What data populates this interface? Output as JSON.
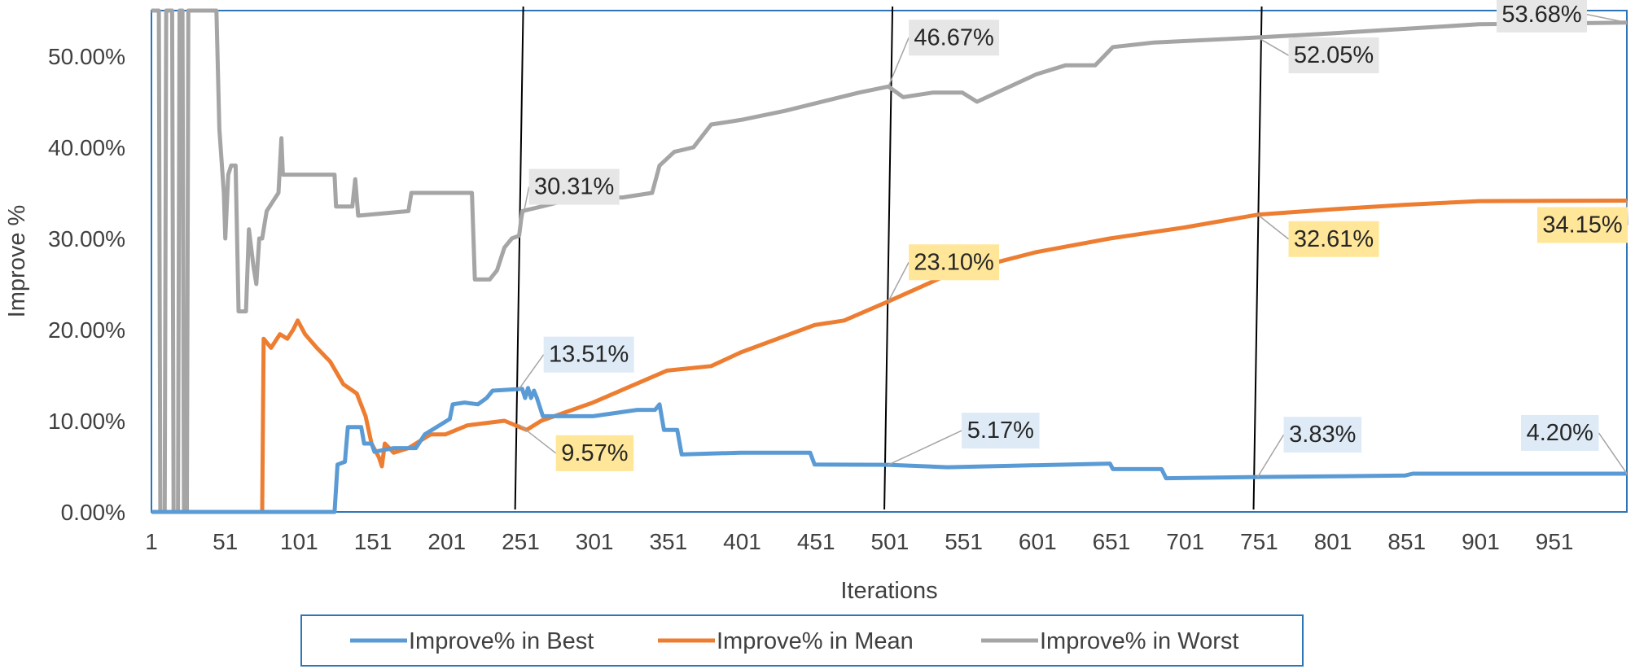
{
  "chart_data": {
    "type": "line",
    "title": "",
    "xlabel": "Iterations",
    "ylabel": "Improve %",
    "xlim": [
      1,
      1000
    ],
    "ylim": [
      0,
      0.55
    ],
    "x_ticks": [
      "1",
      "51",
      "101",
      "151",
      "201",
      "251",
      "301",
      "351",
      "401",
      "451",
      "501",
      "551",
      "601",
      "651",
      "701",
      "751",
      "801",
      "851",
      "901",
      "951"
    ],
    "y_ticks": [
      "0.00%",
      "10.00%",
      "20.00%",
      "30.00%",
      "40.00%",
      "50.00%"
    ],
    "vertical_markers": [
      250,
      500,
      750
    ],
    "legend": {
      "position": "bottom"
    },
    "series": [
      {
        "name": "Improve% in Best",
        "color": "#5B9BD5",
        "points": [
          [
            1,
            0
          ],
          [
            125,
            0
          ],
          [
            127,
            0.052
          ],
          [
            132,
            0.055
          ],
          [
            134,
            0.093
          ],
          [
            143,
            0.093
          ],
          [
            145,
            0.075
          ],
          [
            150,
            0.075
          ],
          [
            152,
            0.066
          ],
          [
            165,
            0.07
          ],
          [
            180,
            0.07
          ],
          [
            186,
            0.085
          ],
          [
            196,
            0.095
          ],
          [
            203,
            0.102
          ],
          [
            205,
            0.118
          ],
          [
            213,
            0.12
          ],
          [
            222,
            0.118
          ],
          [
            228,
            0.125
          ],
          [
            232,
            0.133
          ],
          [
            252,
            0.135
          ],
          [
            254,
            0.125
          ],
          [
            256,
            0.136
          ],
          [
            258,
            0.125
          ],
          [
            260,
            0.133
          ],
          [
            262,
            0.125
          ],
          [
            266,
            0.105
          ],
          [
            300,
            0.105
          ],
          [
            330,
            0.112
          ],
          [
            342,
            0.112
          ],
          [
            345,
            0.118
          ],
          [
            348,
            0.09
          ],
          [
            357,
            0.09
          ],
          [
            360,
            0.063
          ],
          [
            400,
            0.065
          ],
          [
            447,
            0.065
          ],
          [
            450,
            0.052
          ],
          [
            500,
            0.0517
          ],
          [
            540,
            0.049
          ],
          [
            650,
            0.053
          ],
          [
            652,
            0.047
          ],
          [
            685,
            0.047
          ],
          [
            688,
            0.037
          ],
          [
            750,
            0.0383
          ],
          [
            800,
            0.039
          ],
          [
            850,
            0.04
          ],
          [
            855,
            0.042
          ],
          [
            1000,
            0.042
          ]
        ]
      },
      {
        "name": "Improve% in Mean",
        "color": "#ED7D31",
        "points": [
          [
            1,
            0
          ],
          [
            76,
            0
          ],
          [
            77,
            0.19
          ],
          [
            82,
            0.18
          ],
          [
            88,
            0.195
          ],
          [
            93,
            0.19
          ],
          [
            97,
            0.2
          ],
          [
            100,
            0.21
          ],
          [
            105,
            0.195
          ],
          [
            113,
            0.18
          ],
          [
            122,
            0.165
          ],
          [
            131,
            0.14
          ],
          [
            140,
            0.13
          ],
          [
            146,
            0.105
          ],
          [
            150,
            0.075
          ],
          [
            155,
            0.06
          ],
          [
            157,
            0.05
          ],
          [
            159,
            0.075
          ],
          [
            165,
            0.065
          ],
          [
            175,
            0.07
          ],
          [
            190,
            0.085
          ],
          [
            200,
            0.085
          ],
          [
            215,
            0.095
          ],
          [
            240,
            0.1
          ],
          [
            255,
            0.09
          ],
          [
            265,
            0.1
          ],
          [
            300,
            0.12
          ],
          [
            350,
            0.155
          ],
          [
            380,
            0.16
          ],
          [
            400,
            0.175
          ],
          [
            450,
            0.205
          ],
          [
            470,
            0.21
          ],
          [
            500,
            0.231
          ],
          [
            540,
            0.26
          ],
          [
            600,
            0.285
          ],
          [
            650,
            0.3
          ],
          [
            700,
            0.312
          ],
          [
            750,
            0.3261
          ],
          [
            800,
            0.332
          ],
          [
            850,
            0.337
          ],
          [
            900,
            0.341
          ],
          [
            1000,
            0.3415
          ]
        ]
      },
      {
        "name": "Improve% in Worst",
        "color": "#A5A5A5",
        "points": [
          [
            1,
            0.55
          ],
          [
            6,
            0.55
          ],
          [
            7,
            0
          ],
          [
            10,
            0
          ],
          [
            11,
            0.55
          ],
          [
            15,
            0.55
          ],
          [
            16,
            0
          ],
          [
            19,
            0
          ],
          [
            20,
            0.55
          ],
          [
            22,
            0.55
          ],
          [
            23,
            0
          ],
          [
            25,
            0
          ],
          [
            26,
            0.55
          ],
          [
            45,
            0.55
          ],
          [
            47,
            0.42
          ],
          [
            50,
            0.35
          ],
          [
            51,
            0.3
          ],
          [
            53,
            0.37
          ],
          [
            55,
            0.38
          ],
          [
            58,
            0.38
          ],
          [
            60,
            0.22
          ],
          [
            65,
            0.22
          ],
          [
            67,
            0.31
          ],
          [
            70,
            0.27
          ],
          [
            72,
            0.25
          ],
          [
            74,
            0.3
          ],
          [
            76,
            0.3
          ],
          [
            79,
            0.33
          ],
          [
            83,
            0.34
          ],
          [
            87,
            0.35
          ],
          [
            89,
            0.41
          ],
          [
            90,
            0.37
          ],
          [
            125,
            0.37
          ],
          [
            126,
            0.335
          ],
          [
            137,
            0.335
          ],
          [
            139,
            0.365
          ],
          [
            141,
            0.325
          ],
          [
            175,
            0.33
          ],
          [
            177,
            0.35
          ],
          [
            218,
            0.35
          ],
          [
            220,
            0.255
          ],
          [
            230,
            0.255
          ],
          [
            235,
            0.265
          ],
          [
            240,
            0.29
          ],
          [
            245,
            0.3
          ],
          [
            250,
            0.3031
          ],
          [
            252,
            0.33
          ],
          [
            265,
            0.335
          ],
          [
            290,
            0.345
          ],
          [
            320,
            0.345
          ],
          [
            340,
            0.35
          ],
          [
            345,
            0.38
          ],
          [
            355,
            0.395
          ],
          [
            368,
            0.4
          ],
          [
            380,
            0.425
          ],
          [
            400,
            0.43
          ],
          [
            430,
            0.44
          ],
          [
            480,
            0.46
          ],
          [
            500,
            0.4667
          ],
          [
            510,
            0.455
          ],
          [
            530,
            0.46
          ],
          [
            550,
            0.46
          ],
          [
            560,
            0.45
          ],
          [
            600,
            0.48
          ],
          [
            620,
            0.49
          ],
          [
            640,
            0.49
          ],
          [
            652,
            0.51
          ],
          [
            680,
            0.515
          ],
          [
            750,
            0.5205
          ],
          [
            800,
            0.525
          ],
          [
            850,
            0.53
          ],
          [
            900,
            0.535
          ],
          [
            1000,
            0.5368
          ]
        ]
      }
    ],
    "data_labels": [
      {
        "series": "Improve% in Best",
        "x": 250,
        "y": 0.1351,
        "text": "13.51%"
      },
      {
        "series": "Improve% in Best",
        "x": 500,
        "y": 0.0517,
        "text": "5.17%"
      },
      {
        "series": "Improve% in Best",
        "x": 750,
        "y": 0.0383,
        "text": "3.83%"
      },
      {
        "series": "Improve% in Best",
        "x": 1000,
        "y": 0.042,
        "text": "4.20%"
      },
      {
        "series": "Improve% in Mean",
        "x": 250,
        "y": 0.0957,
        "text": "9.57%"
      },
      {
        "series": "Improve% in Mean",
        "x": 500,
        "y": 0.231,
        "text": "23.10%"
      },
      {
        "series": "Improve% in Mean",
        "x": 750,
        "y": 0.3261,
        "text": "32.61%"
      },
      {
        "series": "Improve% in Mean",
        "x": 1000,
        "y": 0.3415,
        "text": "34.15%"
      },
      {
        "series": "Improve% in Worst",
        "x": 250,
        "y": 0.3031,
        "text": "30.31%"
      },
      {
        "series": "Improve% in Worst",
        "x": 500,
        "y": 0.4667,
        "text": "46.67%"
      },
      {
        "series": "Improve% in Worst",
        "x": 750,
        "y": 0.5205,
        "text": "52.05%"
      },
      {
        "series": "Improve% in Worst",
        "x": 1000,
        "y": 0.5368,
        "text": "53.68%"
      }
    ]
  },
  "style": {
    "frame_color": "#2E75B6",
    "grid": false,
    "label_fill_best": "#DEEBF7",
    "label_fill_mean": "#FFE699",
    "label_fill_worst": "#E7E6E6"
  }
}
